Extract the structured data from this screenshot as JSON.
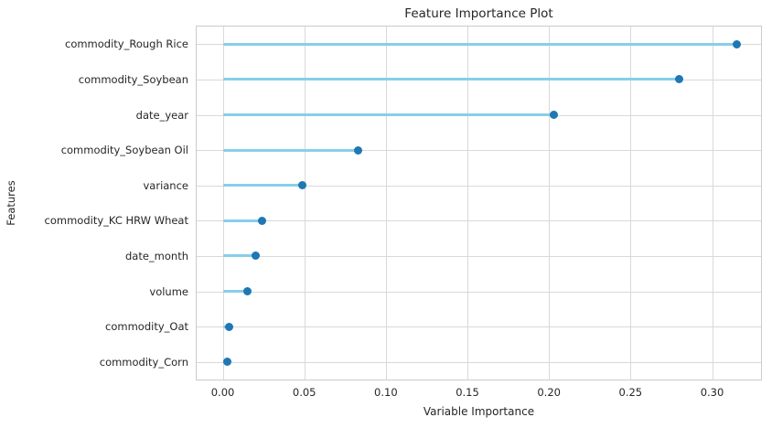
{
  "colors": {
    "stem": "#87ceeb",
    "dot": "#1f77b4",
    "grid": "#d9d9d9",
    "spine": "#cbcbcb",
    "text": "#262626",
    "background": "#ffffff"
  },
  "chart_data": {
    "type": "scatter",
    "variant": "horizontal-lollipop",
    "title": "Feature Importance Plot",
    "xlabel": "Variable Importance",
    "ylabel": "Features",
    "grid": true,
    "legend": false,
    "xlim": [
      -0.016,
      0.33
    ],
    "x_ticks": [
      0.0,
      0.05,
      0.1,
      0.15,
      0.2,
      0.25,
      0.3
    ],
    "x_tick_labels": [
      "0.00",
      "0.05",
      "0.10",
      "0.15",
      "0.20",
      "0.25",
      "0.30"
    ],
    "categories": [
      "commodity_Rough Rice",
      "commodity_Soybean",
      "date_year",
      "commodity_Soybean Oil",
      "variance",
      "commodity_KC HRW Wheat",
      "date_month",
      "volume",
      "commodity_Oat",
      "commodity_Corn"
    ],
    "values": [
      0.315,
      0.28,
      0.203,
      0.083,
      0.049,
      0.024,
      0.02,
      0.015,
      0.004,
      0.003
    ]
  }
}
